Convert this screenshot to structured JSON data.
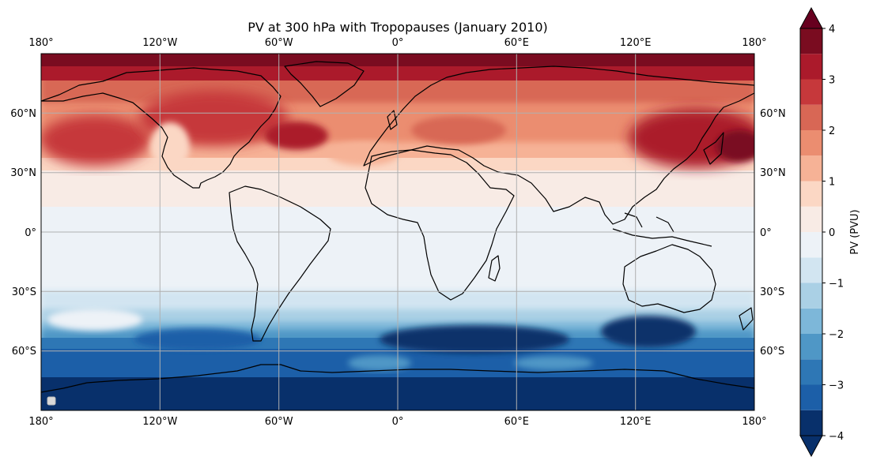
{
  "title": "PV at 300 hPa with Tropopauses (January 2010)",
  "lon_ticks": [
    "180°",
    "120°W",
    "60°W",
    "0°",
    "60°E",
    "120°E",
    "180°"
  ],
  "lat_ticks": [
    "60°N",
    "30°N",
    "0°",
    "30°S",
    "60°S"
  ],
  "colorbar": {
    "label": "PV (PVU)",
    "ticks": [
      "4",
      "3",
      "2",
      "1",
      "0",
      "−1",
      "−2",
      "−3",
      "−4"
    ],
    "levels": [
      -4,
      -3.5,
      -3,
      -2.5,
      -2,
      -1.5,
      -1,
      -0.5,
      0,
      0.5,
      1,
      1.5,
      2,
      2.5,
      3,
      3.5,
      4
    ],
    "colors": [
      "#08306b",
      "#1c5fa8",
      "#2e77b5",
      "#4f97c6",
      "#7db7d9",
      "#aad0e5",
      "#d2e5f1",
      "#edf2f7",
      "#f8ebe5",
      "#fbd7c4",
      "#f6b296",
      "#eb8d70",
      "#d86755",
      "#c6383b",
      "#ab1a2b",
      "#7a0c20"
    ],
    "under_color": "#08306b",
    "over_color": "#67001f"
  },
  "map": {
    "lon_range": [
      -180,
      180
    ],
    "lat_range": [
      -90,
      90
    ],
    "projection": "PlateCarree",
    "gridlines": true,
    "coastlines": true
  }
}
